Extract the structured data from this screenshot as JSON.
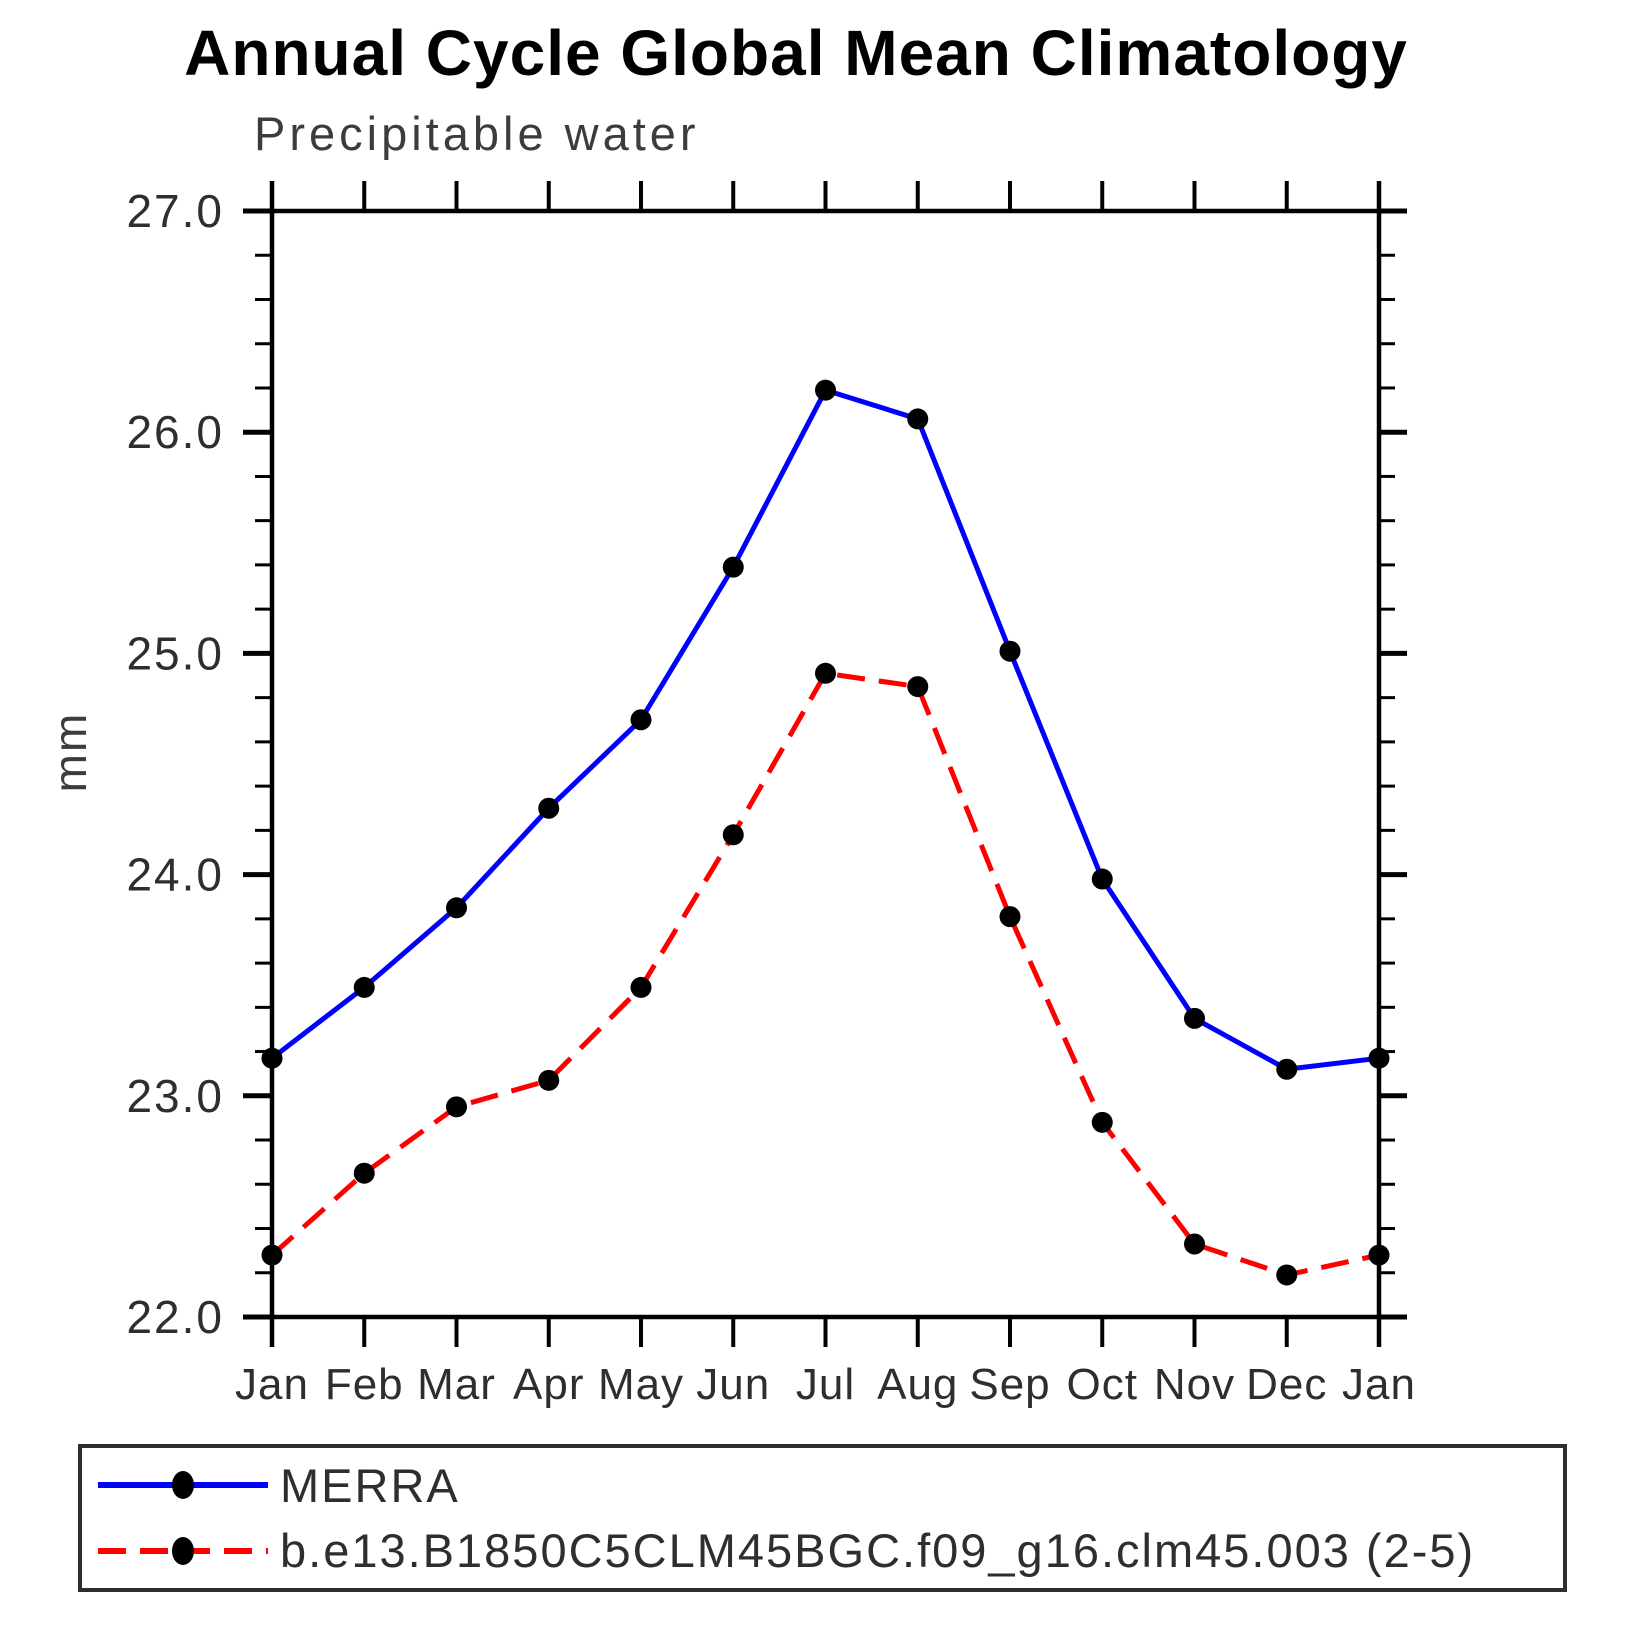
{
  "title": "Annual Cycle Global Mean Climatology",
  "subtitle": "Precipitable water",
  "y_axis": {
    "label": "mm",
    "min": 22.0,
    "max": 27.0,
    "major_step": 1.0,
    "minor_step": 0.2,
    "tick_labels": [
      "27.0",
      "26.0",
      "25.0",
      "24.0",
      "23.0",
      "22.0"
    ]
  },
  "x_axis": {
    "tick_labels": [
      "Jan",
      "Feb",
      "Mar",
      "Apr",
      "May",
      "Jun",
      "Jul",
      "Aug",
      "Sep",
      "Oct",
      "Nov",
      "Dec",
      "Jan"
    ]
  },
  "legend": {
    "items": [
      {
        "label": "MERRA",
        "color": "#0000ff",
        "style": "solid"
      },
      {
        "label": "b.e13.B1850C5CLM45BGC.f09_g16.clm45.003 (2-5)",
        "color": "#ff0000",
        "style": "dashed"
      }
    ]
  },
  "colors": {
    "series_merra": "#0000ff",
    "series_model": "#ff0000",
    "marker": "#000000",
    "axis": "#000000",
    "text": "#2e2e2e"
  },
  "chart_data": {
    "type": "line",
    "x": [
      "Jan",
      "Feb",
      "Mar",
      "Apr",
      "May",
      "Jun",
      "Jul",
      "Aug",
      "Sep",
      "Oct",
      "Nov",
      "Dec",
      "Jan"
    ],
    "series": [
      {
        "name": "MERRA",
        "color": "#0000ff",
        "line": "solid",
        "marker": "circle",
        "values": [
          23.17,
          23.49,
          23.85,
          24.3,
          24.7,
          25.39,
          26.19,
          26.06,
          25.01,
          23.98,
          23.35,
          23.12,
          23.17
        ]
      },
      {
        "name": "b.e13.B1850C5CLM45BGC.f09_g16.clm45.003 (2-5)",
        "color": "#ff0000",
        "line": "dashed",
        "marker": "circle",
        "values": [
          22.28,
          22.65,
          22.95,
          23.07,
          23.49,
          24.18,
          24.91,
          24.85,
          23.81,
          22.88,
          22.33,
          22.19,
          22.28
        ]
      }
    ],
    "title": "Annual Cycle Global Mean Climatology",
    "subtitle": "Precipitable water",
    "xlabel": "",
    "ylabel": "mm",
    "ylim": [
      22.0,
      27.0
    ],
    "grid": false,
    "legend_position": "bottom"
  }
}
